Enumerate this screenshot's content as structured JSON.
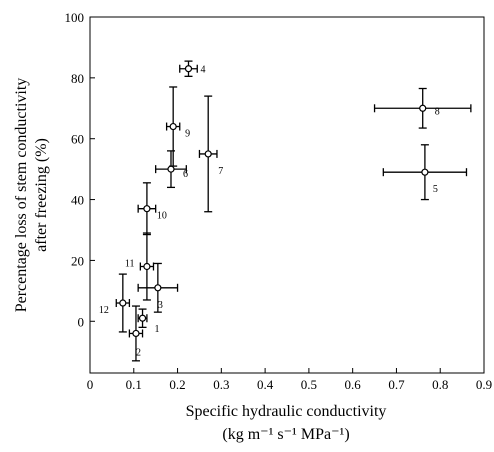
{
  "chart_data": {
    "type": "scatter",
    "xlabel": [
      "Specific hydraulic conductivity",
      "(kg m⁻¹ s⁻¹ MPa⁻¹)"
    ],
    "ylabel": [
      "Percentage loss of stem conductivity",
      "after freezing (%)"
    ],
    "xlim": [
      0,
      0.9
    ],
    "ylim": [
      -17,
      100
    ],
    "xticks": [
      0,
      0.1,
      0.2,
      0.3,
      0.4,
      0.5,
      0.6,
      0.7,
      0.8,
      0.9
    ],
    "yticks": [
      0,
      20,
      40,
      60,
      80,
      100
    ],
    "series": [
      {
        "color": "#000000",
        "labels": [
          "1",
          "2",
          "3",
          "4",
          "5",
          "6",
          "7",
          "8",
          "9",
          "10",
          "11",
          "12"
        ],
        "x": [
          0.12,
          0.105,
          0.155,
          0.225,
          0.765,
          0.185,
          0.27,
          0.76,
          0.19,
          0.13,
          0.13,
          0.075
        ],
        "values": [
          1,
          -4,
          11,
          83,
          49,
          50,
          55,
          70,
          64,
          37,
          18,
          6
        ],
        "xerr": [
          0.01,
          0.015,
          0.045,
          0.02,
          0.095,
          0.035,
          0.02,
          0.11,
          0.015,
          0.02,
          0.015,
          0.015
        ],
        "yerr": [
          3,
          9,
          8,
          2.5,
          9,
          6,
          19,
          6.5,
          13,
          8.5,
          11,
          9.5
        ]
      }
    ]
  }
}
